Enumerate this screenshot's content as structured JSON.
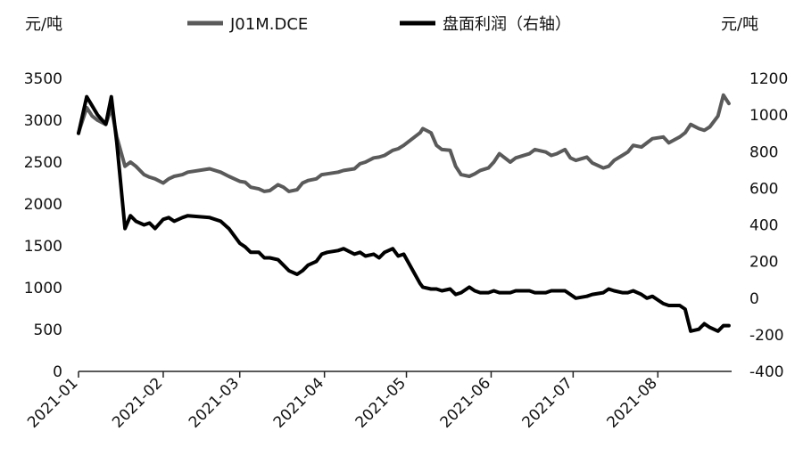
{
  "chart_data": {
    "type": "line",
    "left_unit": "元/吨",
    "right_unit": "元/吨",
    "left_axis": {
      "min": 0,
      "max": 3500,
      "ticks": [
        0,
        500,
        1000,
        1500,
        2000,
        2500,
        3000,
        3500
      ]
    },
    "right_axis": {
      "min": -400,
      "max": 1200,
      "ticks": [
        -400,
        -200,
        0,
        200,
        400,
        600,
        800,
        1000,
        1200
      ]
    },
    "x_range": [
      "2021-01-01",
      "2021-08-28"
    ],
    "x_ticks": [
      "2021-01",
      "2021-02",
      "2021-03",
      "2021-04",
      "2021-05",
      "2021-06",
      "2021-07",
      "2021-08"
    ],
    "grid": false,
    "legend_position": "top",
    "series": [
      {
        "name": "J01M.DCE",
        "axis": "left",
        "color": "#5a5a5a",
        "x": [
          "2021-01-01",
          "2021-01-04",
          "2021-01-06",
          "2021-01-08",
          "2021-01-11",
          "2021-01-13",
          "2021-01-15",
          "2021-01-18",
          "2021-01-20",
          "2021-01-22",
          "2021-01-25",
          "2021-01-27",
          "2021-01-29",
          "2021-02-01",
          "2021-02-03",
          "2021-02-05",
          "2021-02-08",
          "2021-02-10",
          "2021-02-18",
          "2021-02-22",
          "2021-02-25",
          "2021-03-01",
          "2021-03-03",
          "2021-03-05",
          "2021-03-08",
          "2021-03-10",
          "2021-03-12",
          "2021-03-15",
          "2021-03-17",
          "2021-03-19",
          "2021-03-22",
          "2021-03-24",
          "2021-03-26",
          "2021-03-29",
          "2021-03-31",
          "2021-04-02",
          "2021-04-06",
          "2021-04-08",
          "2021-04-12",
          "2021-04-14",
          "2021-04-16",
          "2021-04-19",
          "2021-04-21",
          "2021-04-23",
          "2021-04-26",
          "2021-04-28",
          "2021-04-30",
          "2021-05-06",
          "2021-05-07",
          "2021-05-10",
          "2021-05-12",
          "2021-05-14",
          "2021-05-17",
          "2021-05-19",
          "2021-05-21",
          "2021-05-24",
          "2021-05-26",
          "2021-05-28",
          "2021-05-31",
          "2021-06-02",
          "2021-06-04",
          "2021-06-08",
          "2021-06-10",
          "2021-06-15",
          "2021-06-17",
          "2021-06-21",
          "2021-06-23",
          "2021-06-25",
          "2021-06-28",
          "2021-06-30",
          "2021-07-02",
          "2021-07-06",
          "2021-07-08",
          "2021-07-12",
          "2021-07-14",
          "2021-07-16",
          "2021-07-19",
          "2021-07-21",
          "2021-07-23",
          "2021-07-26",
          "2021-07-28",
          "2021-07-30",
          "2021-08-03",
          "2021-08-05",
          "2021-08-09",
          "2021-08-11",
          "2021-08-13",
          "2021-08-16",
          "2021-08-18",
          "2021-08-20",
          "2021-08-23",
          "2021-08-25",
          "2021-08-27"
        ],
        "values": [
          2850,
          3150,
          3050,
          3000,
          2950,
          3150,
          2800,
          2450,
          2500,
          2450,
          2350,
          2320,
          2300,
          2250,
          2300,
          2330,
          2350,
          2380,
          2420,
          2380,
          2330,
          2270,
          2260,
          2200,
          2180,
          2150,
          2160,
          2230,
          2200,
          2150,
          2170,
          2250,
          2280,
          2300,
          2350,
          2360,
          2380,
          2400,
          2420,
          2480,
          2500,
          2550,
          2560,
          2580,
          2640,
          2660,
          2700,
          2850,
          2900,
          2850,
          2700,
          2650,
          2640,
          2450,
          2350,
          2330,
          2360,
          2400,
          2430,
          2500,
          2600,
          2500,
          2550,
          2600,
          2650,
          2620,
          2580,
          2600,
          2650,
          2550,
          2520,
          2560,
          2490,
          2430,
          2450,
          2520,
          2580,
          2620,
          2700,
          2680,
          2730,
          2780,
          2800,
          2730,
          2800,
          2850,
          2950,
          2900,
          2880,
          2920,
          3050,
          3300,
          3200
        ]
      },
      {
        "name": "盘面利润（右轴）",
        "axis": "right",
        "color": "#000000",
        "x": [
          "2021-01-01",
          "2021-01-04",
          "2021-01-06",
          "2021-01-08",
          "2021-01-11",
          "2021-01-13",
          "2021-01-15",
          "2021-01-18",
          "2021-01-20",
          "2021-01-22",
          "2021-01-25",
          "2021-01-27",
          "2021-01-29",
          "2021-02-01",
          "2021-02-03",
          "2021-02-05",
          "2021-02-08",
          "2021-02-10",
          "2021-02-18",
          "2021-02-22",
          "2021-02-25",
          "2021-03-01",
          "2021-03-03",
          "2021-03-05",
          "2021-03-08",
          "2021-03-10",
          "2021-03-12",
          "2021-03-15",
          "2021-03-17",
          "2021-03-19",
          "2021-03-22",
          "2021-03-24",
          "2021-03-26",
          "2021-03-29",
          "2021-03-31",
          "2021-04-02",
          "2021-04-06",
          "2021-04-08",
          "2021-04-12",
          "2021-04-14",
          "2021-04-16",
          "2021-04-19",
          "2021-04-21",
          "2021-04-23",
          "2021-04-26",
          "2021-04-28",
          "2021-04-30",
          "2021-05-06",
          "2021-05-07",
          "2021-05-10",
          "2021-05-12",
          "2021-05-14",
          "2021-05-17",
          "2021-05-19",
          "2021-05-21",
          "2021-05-24",
          "2021-05-26",
          "2021-05-28",
          "2021-05-31",
          "2021-06-02",
          "2021-06-04",
          "2021-06-08",
          "2021-06-10",
          "2021-06-15",
          "2021-06-17",
          "2021-06-21",
          "2021-06-23",
          "2021-06-25",
          "2021-06-28",
          "2021-06-30",
          "2021-07-02",
          "2021-07-06",
          "2021-07-08",
          "2021-07-12",
          "2021-07-14",
          "2021-07-16",
          "2021-07-19",
          "2021-07-21",
          "2021-07-23",
          "2021-07-26",
          "2021-07-28",
          "2021-07-30",
          "2021-08-03",
          "2021-08-05",
          "2021-08-09",
          "2021-08-11",
          "2021-08-13",
          "2021-08-16",
          "2021-08-18",
          "2021-08-20",
          "2021-08-23",
          "2021-08-25",
          "2021-08-27"
        ],
        "values": [
          900,
          1100,
          1050,
          1000,
          950,
          1100,
          850,
          380,
          450,
          420,
          400,
          410,
          380,
          430,
          440,
          420,
          440,
          450,
          440,
          420,
          380,
          300,
          280,
          250,
          250,
          220,
          220,
          210,
          180,
          150,
          130,
          150,
          180,
          200,
          240,
          250,
          260,
          270,
          240,
          250,
          230,
          240,
          220,
          250,
          270,
          230,
          240,
          80,
          60,
          50,
          50,
          40,
          50,
          20,
          30,
          60,
          40,
          30,
          30,
          40,
          30,
          30,
          40,
          40,
          30,
          30,
          40,
          40,
          40,
          20,
          0,
          10,
          20,
          30,
          50,
          40,
          30,
          30,
          40,
          20,
          0,
          10,
          -30,
          -40,
          -40,
          -60,
          -180,
          -170,
          -140,
          -160,
          -180,
          -150,
          -150
        ]
      }
    ]
  }
}
